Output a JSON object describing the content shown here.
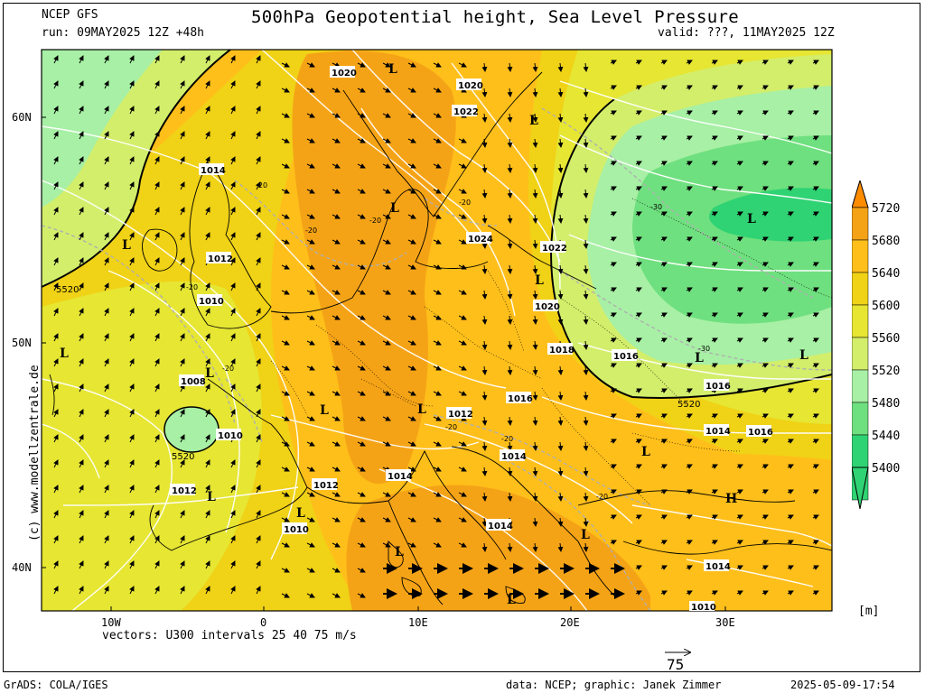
{
  "header": {
    "model": "NCEP GFS",
    "title": "500hPa Geopotential height, Sea Level Pressure",
    "run": "run: 09MAY2025 12Z +48h",
    "valid": "valid: ???, 11MAY2025 12Z"
  },
  "axes": {
    "lon_ticks": [
      "10W",
      "0",
      "10E",
      "20E",
      "30E"
    ],
    "lat_ticks": [
      "60N",
      "50N",
      "40N"
    ]
  },
  "legend": {
    "unit": "[m]",
    "levels": [
      {
        "value": "5720",
        "color": "#ff8c00"
      },
      {
        "value": "5680",
        "color": "#f5a316"
      },
      {
        "value": "5640",
        "color": "#ffbf1a"
      },
      {
        "value": "5600",
        "color": "#f0d216"
      },
      {
        "value": "5560",
        "color": "#e6e633"
      },
      {
        "value": "5520",
        "color": "#d3ee6b"
      },
      {
        "value": "5480",
        "color": "#a7f0a5"
      },
      {
        "value": "5440",
        "color": "#6fe07f"
      },
      {
        "value": "5400",
        "color": "#2fd373"
      }
    ]
  },
  "colors": {
    "background": "#ffffff",
    "geopotential_contour": "#000000",
    "isobar": "#ffffff",
    "temperature_contour": "#b0b0b0",
    "coastline": "#000000"
  },
  "pressure_labels": [
    "1020",
    "1020",
    "1022",
    "1014",
    "1024",
    "1022",
    "1020",
    "1018",
    "1016",
    "1016",
    "1012",
    "1012",
    "1010",
    "1008",
    "1010",
    "1012",
    "1010",
    "1012",
    "1014",
    "1014",
    "1014",
    "1016",
    "1014",
    "1010",
    "1014",
    "1016"
  ],
  "height_labels": [
    "5520",
    "5520",
    "5520"
  ],
  "temperature_labels": [
    "-20",
    "-20",
    "-20",
    "-20",
    "-20",
    "-20",
    "-30",
    "-30",
    "-20",
    "-20",
    "-20"
  ],
  "system_markers": [
    "L",
    "L",
    "L",
    "L",
    "L",
    "L",
    "L",
    "L",
    "L",
    "L",
    "L",
    "L",
    "L",
    "L",
    "L",
    "L",
    "L",
    "L",
    "H"
  ],
  "footer": {
    "vectors": "vectors: U300 intervals 25 40 75 m/s",
    "reference_speed": "75",
    "watermark": "(c) www.modellzentrale.de",
    "software": "GrADS: COLA/IGES",
    "credits": "data: NCEP; graphic: Janek Zimmer",
    "timestamp": "2025-05-09-17:54"
  }
}
